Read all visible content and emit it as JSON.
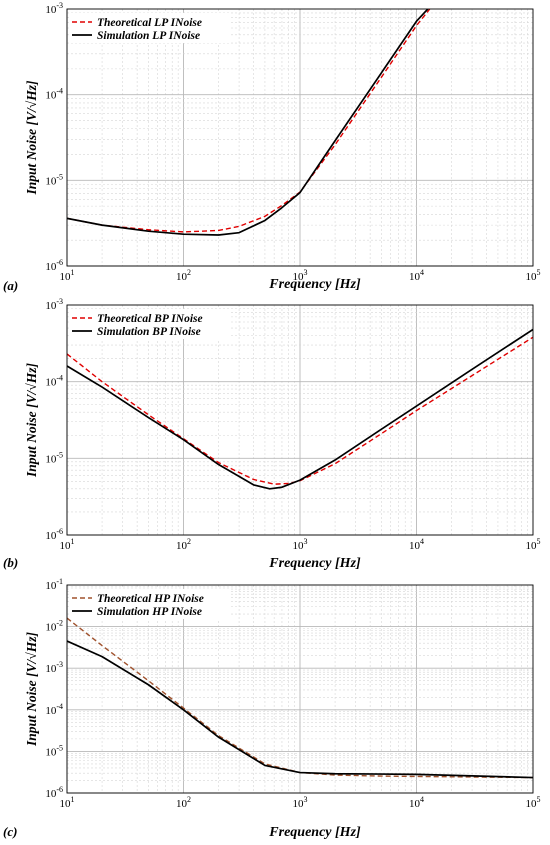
{
  "chart_data": [
    {
      "type": "line",
      "panel_label": "(a)",
      "xlabel": "Frequency [Hz]",
      "ylabel": "Input Noise [V/√Hz]",
      "x_scale": "log",
      "y_scale": "log",
      "xlim": [
        10,
        100000
      ],
      "ylim": [
        1e-06,
        0.001
      ],
      "grid": true,
      "legend_position": "top-left",
      "x_ticks": [
        {
          "base": "10",
          "exp": "1"
        },
        {
          "base": "10",
          "exp": "2"
        },
        {
          "base": "10",
          "exp": "3"
        },
        {
          "base": "10",
          "exp": "4"
        },
        {
          "base": "10",
          "exp": "5"
        }
      ],
      "y_ticks": [
        {
          "base": "10",
          "exp": "-6"
        },
        {
          "base": "10",
          "exp": "-5"
        },
        {
          "base": "10",
          "exp": "-4"
        },
        {
          "base": "10",
          "exp": "-3"
        }
      ],
      "series": [
        {
          "name": "Theoretical LP INoise",
          "color": "#e00000",
          "dash": "dashed",
          "x": [
            10,
            20,
            50,
            100,
            200,
            300,
            500,
            700,
            1000,
            2000,
            5000,
            10000,
            13000
          ],
          "y": [
            3.6e-06,
            3e-06,
            2.65e-06,
            2.5e-06,
            2.6e-06,
            2.9e-06,
            3.8e-06,
            5.1e-06,
            7.3e-06,
            2.6e-05,
            0.00016,
            0.00064,
            0.001
          ]
        },
        {
          "name": "Simulation LP INoise",
          "color": "#000000",
          "dash": "solid",
          "x": [
            10,
            20,
            50,
            100,
            200,
            300,
            500,
            700,
            1000,
            2000,
            5000,
            10000,
            12500
          ],
          "y": [
            3.6e-06,
            3e-06,
            2.55e-06,
            2.35e-06,
            2.3e-06,
            2.45e-06,
            3.4e-06,
            4.8e-06,
            7.2e-06,
            2.9e-05,
            0.00018,
            0.00072,
            0.001
          ]
        }
      ]
    },
    {
      "type": "line",
      "panel_label": "(b)",
      "xlabel": "Frequency [Hz]",
      "ylabel": "Input Noise [V/√Hz]",
      "x_scale": "log",
      "y_scale": "log",
      "xlim": [
        10,
        100000
      ],
      "ylim": [
        1e-06,
        0.001
      ],
      "grid": true,
      "legend_position": "top-left",
      "x_ticks": [
        {
          "base": "10",
          "exp": "1"
        },
        {
          "base": "10",
          "exp": "2"
        },
        {
          "base": "10",
          "exp": "3"
        },
        {
          "base": "10",
          "exp": "4"
        },
        {
          "base": "10",
          "exp": "5"
        }
      ],
      "y_ticks": [
        {
          "base": "10",
          "exp": "-6"
        },
        {
          "base": "10",
          "exp": "-5"
        },
        {
          "base": "10",
          "exp": "-4"
        },
        {
          "base": "10",
          "exp": "-3"
        }
      ],
      "series": [
        {
          "name": "Theoretical BP INoise",
          "color": "#e00000",
          "dash": "dashed",
          "x": [
            10,
            20,
            50,
            100,
            200,
            400,
            600,
            800,
            1000,
            2000,
            5000,
            10000,
            30000,
            100000
          ],
          "y": [
            0.00023,
            0.0001,
            3.7e-05,
            1.8e-05,
            8.8e-06,
            5.3e-06,
            4.6e-06,
            4.7e-06,
            5.1e-06,
            8.5e-06,
            2.1e-05,
            4.2e-05,
            0.00012,
            0.00038
          ]
        },
        {
          "name": "Simulation BP INoise",
          "color": "#000000",
          "dash": "solid",
          "x": [
            10,
            20,
            50,
            100,
            200,
            400,
            550,
            700,
            1000,
            2000,
            5000,
            10000,
            30000,
            100000
          ],
          "y": [
            0.00016,
            8.5e-05,
            3.4e-05,
            1.75e-05,
            8.3e-06,
            4.5e-06,
            4e-06,
            4.2e-06,
            5.2e-06,
            9.5e-06,
            2.4e-05,
            4.8e-05,
            0.000145,
            0.00048
          ]
        }
      ]
    },
    {
      "type": "line",
      "panel_label": "(c)",
      "xlabel": "Frequency [Hz]",
      "ylabel": "Input Noise [V/√Hz]",
      "x_scale": "log",
      "y_scale": "log",
      "xlim": [
        10,
        100000
      ],
      "ylim": [
        1e-06,
        0.1
      ],
      "grid": true,
      "legend_position": "top-left",
      "x_ticks": [
        {
          "base": "10",
          "exp": "1"
        },
        {
          "base": "10",
          "exp": "2"
        },
        {
          "base": "10",
          "exp": "3"
        },
        {
          "base": "10",
          "exp": "4"
        },
        {
          "base": "10",
          "exp": "5"
        }
      ],
      "y_ticks": [
        {
          "base": "10",
          "exp": "-6"
        },
        {
          "base": "10",
          "exp": "-5"
        },
        {
          "base": "10",
          "exp": "-4"
        },
        {
          "base": "10",
          "exp": "-3"
        },
        {
          "base": "10",
          "exp": "-2"
        },
        {
          "base": "10",
          "exp": "-1"
        }
      ],
      "series": [
        {
          "name": "Theoretical HP INoise",
          "color": "#a0522d",
          "dash": "dashed",
          "x": [
            10,
            20,
            50,
            100,
            200,
            500,
            1000,
            2000,
            5000,
            10000,
            100000
          ],
          "y": [
            0.016,
            0.0035,
            0.0005,
            0.00011,
            2.4e-05,
            5e-06,
            3.1e-06,
            2.7e-06,
            2.55e-06,
            2.5e-06,
            2.35e-06
          ]
        },
        {
          "name": "Simulation HP INoise",
          "color": "#000000",
          "dash": "solid",
          "x": [
            10,
            20,
            50,
            100,
            200,
            500,
            1000,
            2000,
            5000,
            10000,
            100000
          ],
          "y": [
            0.0045,
            0.0019,
            0.0004,
            0.0001,
            2.2e-05,
            4.6e-06,
            3.1e-06,
            2.9e-06,
            2.85e-06,
            2.8e-06,
            2.35e-06
          ]
        }
      ]
    }
  ]
}
